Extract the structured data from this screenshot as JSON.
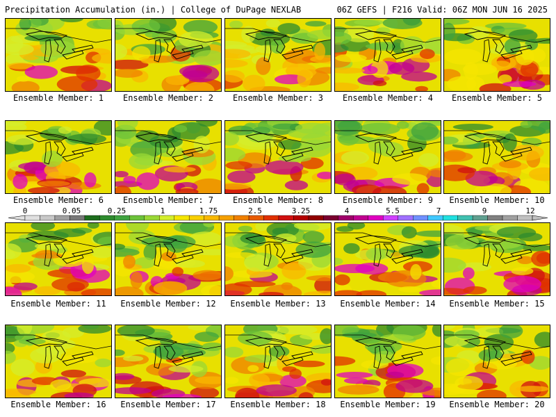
{
  "header": {
    "left_title": "Precipitation Accumulation (in.) | College of DuPage NEXLAB",
    "right_title": "06Z GEFS | F216 Valid: 06Z MON JUN 16 2025"
  },
  "colorbar": {
    "labels": [
      "0",
      "0.05",
      "0.25",
      "1",
      "1.75",
      "2.5",
      "3.25",
      "4",
      "5.5",
      "7",
      "9",
      "12"
    ],
    "colors": [
      "#e0e0e0",
      "#c8c8c8",
      "#a0a0a0",
      "#787878",
      "#1e6e1e",
      "#2e8b2e",
      "#3fa33f",
      "#6cc23a",
      "#9ad836",
      "#d4ee2c",
      "#f5e600",
      "#f9d000",
      "#f9b800",
      "#f5a000",
      "#f08000",
      "#e85a00",
      "#e03000",
      "#d01010",
      "#b40000",
      "#900000",
      "#7a0030",
      "#a0006a",
      "#c00090",
      "#e000c0",
      "#d040ff",
      "#a070ff",
      "#7090ff",
      "#40c8ff",
      "#20e0e0",
      "#40c0b0",
      "#60a090",
      "#808080",
      "#a0a0a0",
      "#c0c0c0"
    ]
  },
  "panels": [
    {
      "caption": "Ensemble Member: 1"
    },
    {
      "caption": "Ensemble Member: 2"
    },
    {
      "caption": "Ensemble Member: 3"
    },
    {
      "caption": "Ensemble Member: 4"
    },
    {
      "caption": "Ensemble Member: 5"
    },
    {
      "caption": "Ensemble Member: 6"
    },
    {
      "caption": "Ensemble Member: 7"
    },
    {
      "caption": "Ensemble Member: 8"
    },
    {
      "caption": "Ensemble Member: 9"
    },
    {
      "caption": "Ensemble Member: 10"
    },
    {
      "caption": "Ensemble Member: 11"
    },
    {
      "caption": "Ensemble Member: 12"
    },
    {
      "caption": "Ensemble Member: 13"
    },
    {
      "caption": "Ensemble Member: 14"
    },
    {
      "caption": "Ensemble Member: 15"
    },
    {
      "caption": "Ensemble Member: 16"
    },
    {
      "caption": "Ensemble Member: 17"
    },
    {
      "caption": "Ensemble Member: 18"
    },
    {
      "caption": "Ensemble Member: 19"
    },
    {
      "caption": "Ensemble Member: 20"
    }
  ]
}
